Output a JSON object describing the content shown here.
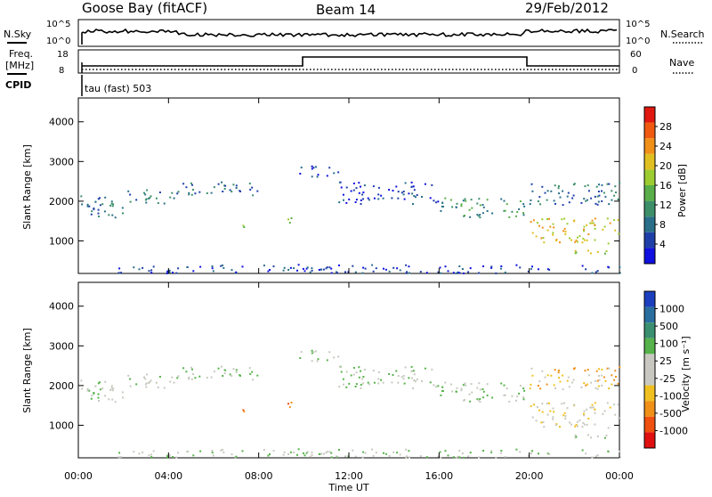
{
  "header": {
    "station": "Goose Bay (fitACF)",
    "beam": "Beam 14",
    "date": "29/Feb/2012"
  },
  "top_panels": {
    "nsky_label": "N.Sky",
    "nsky_ticks": [
      "10^5",
      "10^0"
    ],
    "nsearch_label": "N.Search",
    "nsearch_ticks": [
      "10^5",
      "10^0"
    ],
    "freq_label": "Freq.",
    "freq_unit": "[MHz]",
    "freq_ticks": [
      "18",
      "8"
    ],
    "nave_label": "Nave",
    "nave_ticks": [
      "60",
      "0"
    ],
    "cpid_label": "CPID",
    "cpid_text": "tau (fast) 503"
  },
  "chart_data": [
    {
      "type": "heatmap",
      "title": "",
      "panel": "power",
      "xlabel": "",
      "ylabel": "Slant Range [km]",
      "xlim_hours": [
        0,
        24
      ],
      "ylim": [
        180,
        4600
      ],
      "x_ticks": [
        "00:00",
        "04:00",
        "08:00",
        "12:00",
        "16:00",
        "20:00",
        "00:00"
      ],
      "y_ticks": [
        1000,
        2000,
        3000,
        4000
      ],
      "colorbar": {
        "label": "Power [dB]",
        "ticks": [
          "4",
          "8",
          "12",
          "16",
          "20",
          "24",
          "28"
        ],
        "colors": [
          "#1010e0",
          "#1f3fa8",
          "#2a6f8a",
          "#3d8f6a",
          "#5aae4a",
          "#9ccc30",
          "#e0c020",
          "#f09018",
          "#f05a10",
          "#e01810"
        ]
      },
      "echo_bands": [
        {
          "t0": 0.0,
          "t1": 2.0,
          "r0": 1600,
          "r1": 2200,
          "level": 2
        },
        {
          "t0": 2.0,
          "t1": 4.5,
          "r0": 1950,
          "r1": 2300,
          "level": 2
        },
        {
          "t0": 4.5,
          "t1": 8.0,
          "r0": 2150,
          "r1": 2500,
          "level": 2
        },
        {
          "t0": 9.8,
          "t1": 11.5,
          "r0": 2600,
          "r1": 2900,
          "level": 1
        },
        {
          "t0": 11.5,
          "t1": 16.0,
          "r0": 1950,
          "r1": 2500,
          "level": 1
        },
        {
          "t0": 16.0,
          "t1": 20.0,
          "r0": 1600,
          "r1": 2100,
          "level": 3
        },
        {
          "t0": 20.0,
          "t1": 24.0,
          "r0": 950,
          "r1": 1600,
          "level": 6
        },
        {
          "t0": 20.0,
          "t1": 24.0,
          "r0": 1900,
          "r1": 2500,
          "level": 2
        },
        {
          "t0": 22.0,
          "t1": 24.0,
          "r0": 650,
          "r1": 800,
          "level": 5
        },
        {
          "t0": 7.2,
          "t1": 7.6,
          "r0": 1250,
          "r1": 1450,
          "level": 4
        },
        {
          "t0": 9.2,
          "t1": 9.6,
          "r0": 1450,
          "r1": 1700,
          "level": 4
        },
        {
          "t0": 1.5,
          "t1": 24.0,
          "r0": 200,
          "r1": 420,
          "level": 1
        }
      ]
    },
    {
      "type": "heatmap",
      "title": "",
      "panel": "velocity",
      "xlabel": "Time UT",
      "ylabel": "Slant Range [km]",
      "xlim_hours": [
        0,
        24
      ],
      "ylim": [
        180,
        4600
      ],
      "x_ticks": [
        "00:00",
        "04:00",
        "08:00",
        "12:00",
        "16:00",
        "20:00",
        "00:00"
      ],
      "y_ticks": [
        1000,
        2000,
        3000,
        4000
      ],
      "colorbar": {
        "label": "Velocity [m s⁻¹]",
        "ticks": [
          "1000",
          "500",
          "100",
          "25",
          "-25",
          "-100",
          "-500",
          "-1000"
        ],
        "colors": [
          "#1c3fbf",
          "#2a6ea0",
          "#3a8f70",
          "#56b24a",
          "#c8c8c0",
          "#c8c8c0",
          "#f0c020",
          "#f09018",
          "#f05010",
          "#e01010"
        ]
      },
      "echo_bands": [
        {
          "t0": 0.0,
          "t1": 2.0,
          "r0": 1600,
          "r1": 2200,
          "level": 4
        },
        {
          "t0": 2.0,
          "t1": 4.5,
          "r0": 1950,
          "r1": 2300,
          "level": 4
        },
        {
          "t0": 4.5,
          "t1": 8.0,
          "r0": 2150,
          "r1": 2500,
          "level": 4
        },
        {
          "t0": 9.8,
          "t1": 11.5,
          "r0": 2600,
          "r1": 2900,
          "level": 4
        },
        {
          "t0": 11.5,
          "t1": 16.0,
          "r0": 1950,
          "r1": 2500,
          "level": 4
        },
        {
          "t0": 16.0,
          "t1": 20.0,
          "r0": 1600,
          "r1": 2100,
          "level": 4
        },
        {
          "t0": 20.0,
          "t1": 24.0,
          "r0": 950,
          "r1": 1600,
          "level": 5
        },
        {
          "t0": 20.0,
          "t1": 24.0,
          "r0": 1900,
          "r1": 2500,
          "level": 6
        },
        {
          "t0": 22.0,
          "t1": 24.0,
          "r0": 650,
          "r1": 800,
          "level": 4
        },
        {
          "t0": 7.2,
          "t1": 7.6,
          "r0": 1250,
          "r1": 1450,
          "level": 7
        },
        {
          "t0": 9.2,
          "t1": 9.6,
          "r0": 1450,
          "r1": 1700,
          "level": 7
        },
        {
          "t0": 1.5,
          "t1": 24.0,
          "r0": 200,
          "r1": 420,
          "level": 4
        }
      ]
    }
  ]
}
